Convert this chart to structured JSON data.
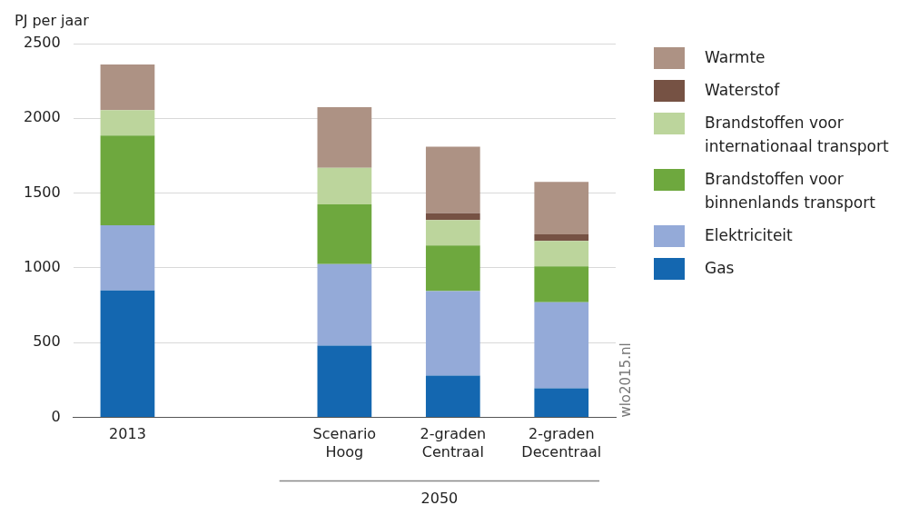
{
  "chart_data": {
    "type": "bar",
    "stacked": true,
    "ylabel": "PJ per jaar",
    "categories": [
      "2013",
      null,
      "Scenario Hoog",
      "2-graden Centraal",
      "2-graden Decentraal"
    ],
    "series": [
      {
        "name": "Gas",
        "color": "#1467b0",
        "values": [
          850,
          null,
          480,
          280,
          195
        ]
      },
      {
        "name": "Elektriciteit",
        "color": "#94aad8",
        "values": [
          435,
          null,
          545,
          565,
          575
        ]
      },
      {
        "name": "Brandstoffen voor binnenlands transport",
        "color": "#6ea83e",
        "values": [
          600,
          null,
          400,
          305,
          240
        ]
      },
      {
        "name": "Brandstoffen voor internationaal transport",
        "color": "#bcd59c",
        "values": [
          170,
          null,
          245,
          170,
          170
        ]
      },
      {
        "name": "Waterstof",
        "color": "#765244",
        "values": [
          0,
          null,
          0,
          45,
          45
        ]
      },
      {
        "name": "Warmte",
        "color": "#ad9284",
        "values": [
          305,
          null,
          405,
          445,
          350
        ]
      }
    ],
    "ylim": [
      0,
      2500
    ],
    "yticks": [
      0,
      500,
      1000,
      1500,
      2000,
      2500
    ],
    "grid": "y",
    "legend": "right",
    "annotations": [
      "2050",
      "wlo2015.nl"
    ]
  }
}
